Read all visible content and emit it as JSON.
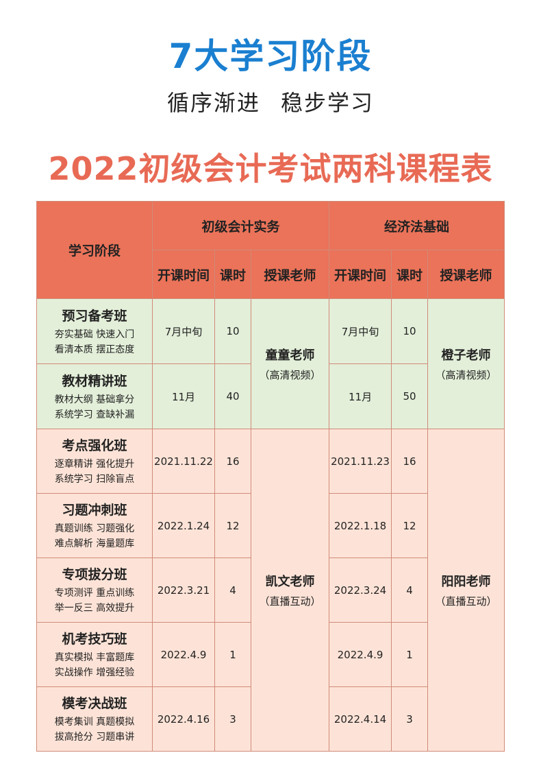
{
  "header": {
    "title": "7大学习阶段",
    "subtitle_left": "循序渐进",
    "subtitle_right": "稳步学习"
  },
  "schedule": {
    "title": "2022初级会计考试两科课程表",
    "col_stage": "学习阶段",
    "subject1": "初级会计实务",
    "subject2": "经济法基础",
    "col_start": "开课时间",
    "col_hours": "课时",
    "col_teacher": "授课老师",
    "teachers": {
      "s1_green": {
        "name": "童童老师",
        "mode": "（高清视频）"
      },
      "s2_green": {
        "name": "橙子老师",
        "mode": "（高清视频）"
      },
      "s1_pink": {
        "name": "凯文老师",
        "mode": "（直播互动）"
      },
      "s2_pink": {
        "name": "阳阳老师",
        "mode": "（直播互动）"
      }
    },
    "rows": [
      {
        "name": "预习备考班",
        "desc1": "夯实基础  快速入门",
        "desc2": "看清本质  摆正态度",
        "s1_start": "7月中旬",
        "s1_hours": "10",
        "s2_start": "7月中旬",
        "s2_hours": "10"
      },
      {
        "name": "教材精讲班",
        "desc1": "教材大纲  基础拿分",
        "desc2": "系统学习  查缺补漏",
        "s1_start": "11月",
        "s1_hours": "40",
        "s2_start": "11月",
        "s2_hours": "50"
      },
      {
        "name": "考点强化班",
        "desc1": "逐章精讲  强化提升",
        "desc2": "系统学习  扫除盲点",
        "s1_start": "2021.11.22",
        "s1_hours": "16",
        "s2_start": "2021.11.23",
        "s2_hours": "16"
      },
      {
        "name": "习题冲刺班",
        "desc1": "真题训练  习题强化",
        "desc2": "难点解析  海量题库",
        "s1_start": "2022.1.24",
        "s1_hours": "12",
        "s2_start": "2022.1.18",
        "s2_hours": "12"
      },
      {
        "name": "专项拔分班",
        "desc1": "专项测评  重点训练",
        "desc2": "举一反三  高效提升",
        "s1_start": "2022.3.21",
        "s1_hours": "4",
        "s2_start": "2022.3.24",
        "s2_hours": "4"
      },
      {
        "name": "机考技巧班",
        "desc1": "真实模拟  丰富题库",
        "desc2": "实战操作  增强经验",
        "s1_start": "2022.4.9",
        "s1_hours": "1",
        "s2_start": "2022.4.9",
        "s2_hours": "1"
      },
      {
        "name": "模考决战班",
        "desc1": "模考集训  真题模拟",
        "desc2": "拔高抢分  习题串讲",
        "s1_start": "2022.4.16",
        "s1_hours": "3",
        "s2_start": "2022.4.14",
        "s2_hours": "3"
      }
    ]
  },
  "colors": {
    "title_blue": "#1a7fd0",
    "schedule_title_red": "#e86a55",
    "header_bg": "#ea7359",
    "green_bg": "#e3efd9",
    "pink_bg": "#fde3d7"
  }
}
